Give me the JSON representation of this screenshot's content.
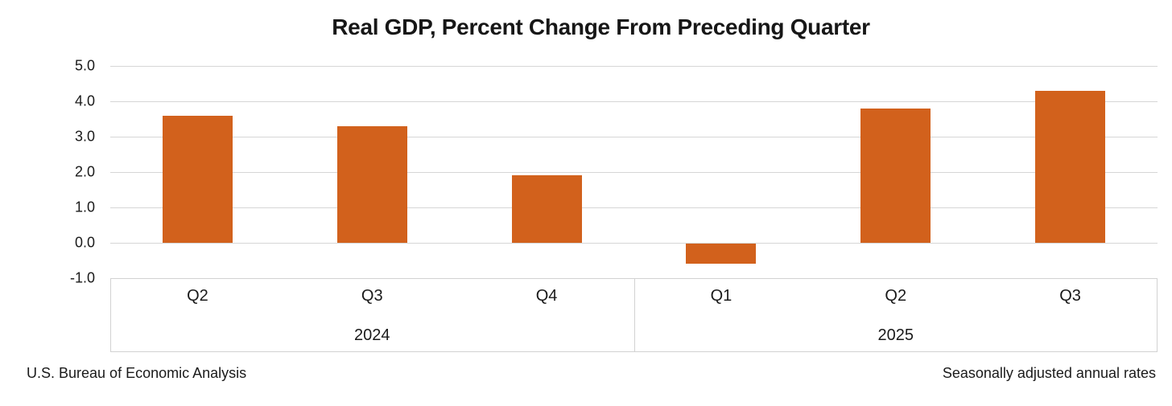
{
  "chart_data": {
    "type": "bar",
    "title": "Real GDP, Percent Change From Preceding Quarter",
    "ylabel": "",
    "xlabel": "",
    "ylim": [
      -1.0,
      5.0
    ],
    "grid": true,
    "legend": false,
    "bar_color": "#d2611c",
    "y_tick_labels": [
      "5.0",
      "4.0",
      "3.0",
      "2.0",
      "1.0",
      "0.0",
      "-1.0"
    ],
    "categories": [
      "Q2 2024",
      "Q3 2024",
      "Q4 2024",
      "Q1 2025",
      "Q2 2025",
      "Q3 2025"
    ],
    "values": [
      3.6,
      3.3,
      1.9,
      -0.6,
      3.8,
      4.3
    ],
    "groups": [
      {
        "year": "2024",
        "quarters": [
          "Q2",
          "Q3",
          "Q4"
        ],
        "values": [
          3.6,
          3.3,
          1.9
        ]
      },
      {
        "year": "2025",
        "quarters": [
          "Q1",
          "Q2",
          "Q3"
        ],
        "values": [
          -0.6,
          3.8,
          4.3
        ]
      }
    ]
  },
  "footer": {
    "source": "U.S. Bureau of Economic Analysis",
    "note": "Seasonally adjusted annual rates"
  }
}
